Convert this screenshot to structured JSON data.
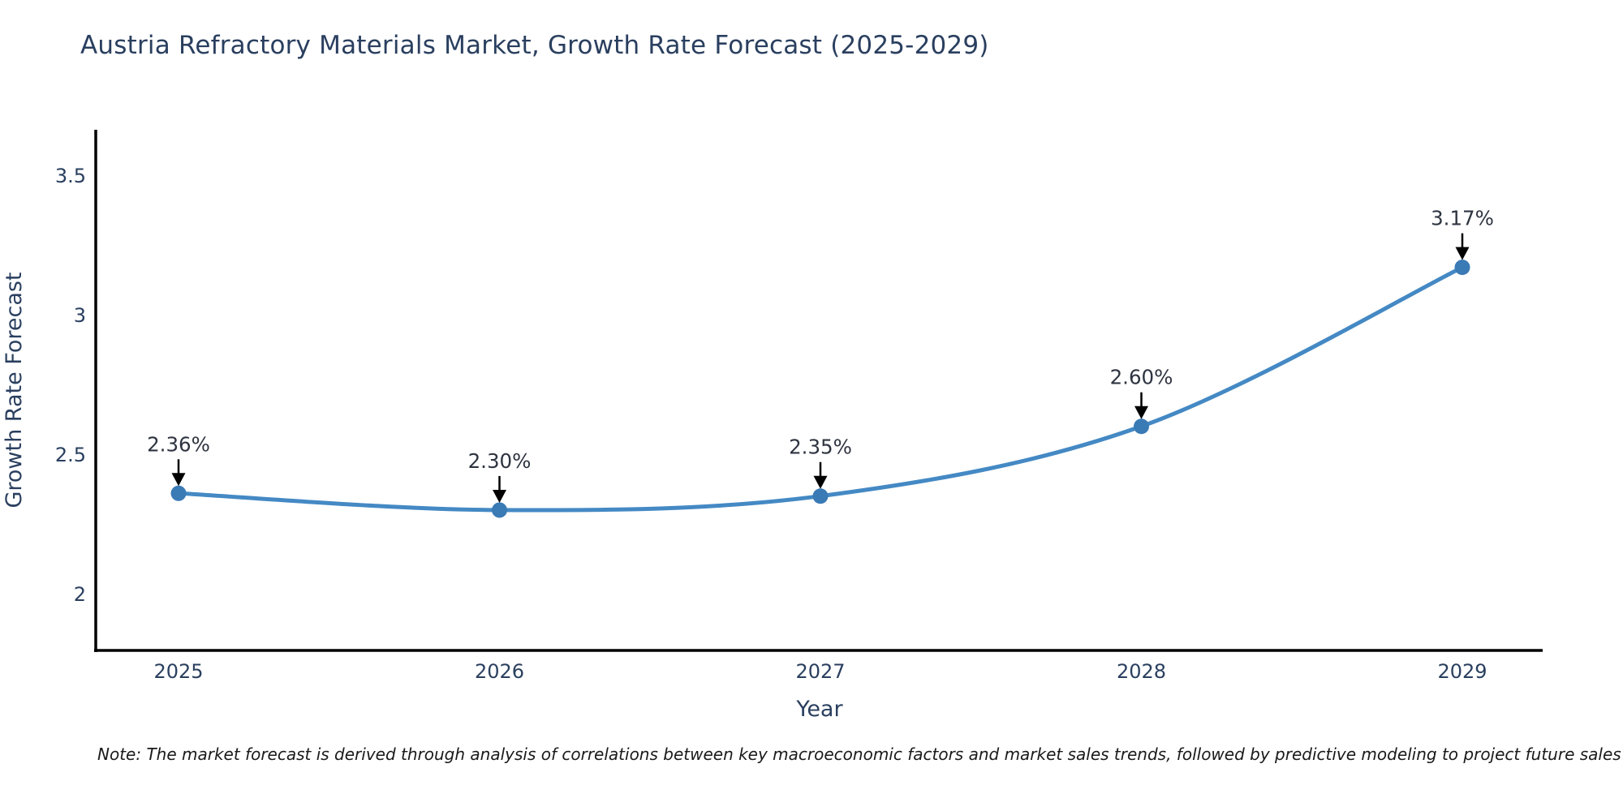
{
  "title": "Austria Refractory Materials Market, Growth Rate Forecast (2025-2029)",
  "note": "Note: The market forecast is derived through analysis of correlations between key macroeconomic factors and market sales trends, followed by predictive modeling to project future sales",
  "colors": {
    "title_text": "#2a3f5f",
    "axis_text": "#2a3f5f",
    "axis_line": "#000000",
    "series_line": "#4489c4",
    "marker_fill": "#3a7ab5",
    "annotation_text": "#2e3440",
    "arrow": "#000000",
    "background": "#ffffff"
  },
  "chart_data": {
    "type": "line",
    "title": "Austria Refractory Materials Market, Growth Rate Forecast (2025-2029)",
    "x": [
      2025,
      2026,
      2027,
      2028,
      2029
    ],
    "series": [
      {
        "name": "Growth Rate Forecast",
        "values": [
          2.36,
          2.3,
          2.35,
          2.6,
          3.17
        ]
      }
    ],
    "point_labels": [
      "2.36%",
      "2.30%",
      "2.35%",
      "2.60%",
      "3.17%"
    ],
    "xlabel": "Year",
    "ylabel": "Growth Rate Forecast",
    "yticks": [
      2,
      2.5,
      3,
      3.5
    ],
    "ylim": [
      1.797,
      3.663
    ],
    "line_shape": "spline",
    "grid": false,
    "legend_position": "none",
    "markers": true
  }
}
